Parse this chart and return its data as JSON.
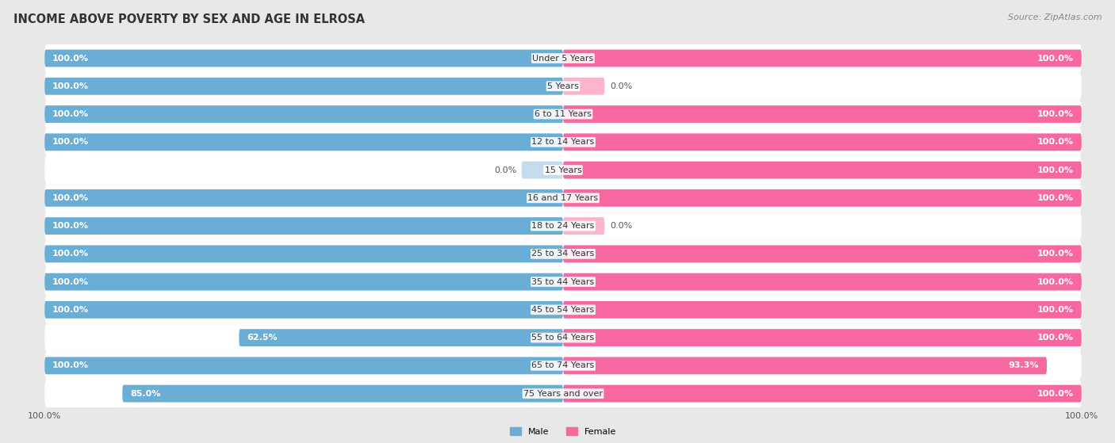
{
  "title": "INCOME ABOVE POVERTY BY SEX AND AGE IN ELROSA",
  "source": "Source: ZipAtlas.com",
  "categories": [
    "Under 5 Years",
    "5 Years",
    "6 to 11 Years",
    "12 to 14 Years",
    "15 Years",
    "16 and 17 Years",
    "18 to 24 Years",
    "25 to 34 Years",
    "35 to 44 Years",
    "45 to 54 Years",
    "55 to 64 Years",
    "65 to 74 Years",
    "75 Years and over"
  ],
  "male_values": [
    100.0,
    100.0,
    100.0,
    100.0,
    0.0,
    100.0,
    100.0,
    100.0,
    100.0,
    100.0,
    62.5,
    100.0,
    85.0
  ],
  "female_values": [
    100.0,
    0.0,
    100.0,
    100.0,
    100.0,
    100.0,
    0.0,
    100.0,
    100.0,
    100.0,
    100.0,
    93.3,
    100.0
  ],
  "male_color": "#6aaed6",
  "female_color": "#f768a1",
  "male_zero_color": "#c6dcee",
  "female_zero_color": "#fbb4cb",
  "male_label": "Male",
  "female_label": "Female",
  "background_color": "#e8e8e8",
  "row_bg_color": "#f0f0f0",
  "title_fontsize": 10.5,
  "label_fontsize": 8,
  "value_fontsize": 8,
  "source_fontsize": 8
}
